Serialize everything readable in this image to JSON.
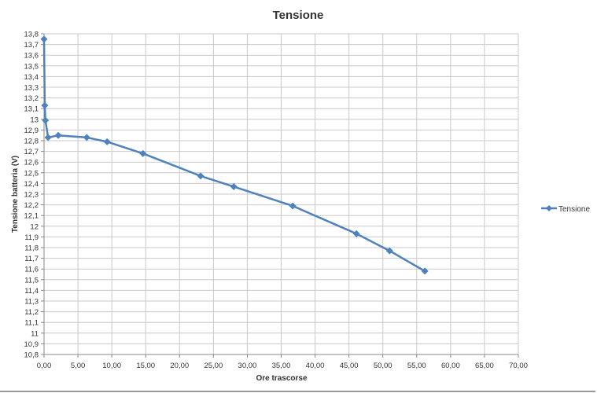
{
  "chart_data": {
    "type": "line",
    "title": "Tensione",
    "xlabel": "Ore trascorse",
    "ylabel": "Tensione batteria (V)",
    "xlim": [
      0,
      70
    ],
    "ylim": [
      10.8,
      13.8
    ],
    "x_ticks": [
      "0,00",
      "5,00",
      "10,00",
      "15,00",
      "20,00",
      "25,00",
      "30,00",
      "35,00",
      "40,00",
      "45,00",
      "50,00",
      "55,00",
      "60,00",
      "65,00",
      "70,00"
    ],
    "y_ticks": [
      "10,8",
      "10,9",
      "11",
      "11,1",
      "11,2",
      "11,3",
      "11,4",
      "11,5",
      "11,6",
      "11,7",
      "11,8",
      "11,9",
      "12",
      "12,1",
      "12,2",
      "12,3",
      "12,4",
      "12,5",
      "12,6",
      "12,7",
      "12,8",
      "12,9",
      "13",
      "13,1",
      "13,2",
      "13,3",
      "13,4",
      "13,5",
      "13,6",
      "13,7",
      "13,8"
    ],
    "grid": true,
    "legend": "right",
    "series": [
      {
        "name": "Tensione",
        "color": "#4f81bd",
        "marker": "diamond",
        "x": [
          0,
          0.1,
          0.2,
          0.6,
          2.1,
          6.3,
          9.3,
          14.6,
          23.1,
          28.0,
          36.7,
          46.1,
          51.0,
          56.2
        ],
        "y": [
          13.75,
          13.13,
          12.99,
          12.83,
          12.85,
          12.83,
          12.79,
          12.68,
          12.47,
          12.37,
          12.19,
          11.93,
          11.77,
          11.58
        ]
      }
    ]
  }
}
